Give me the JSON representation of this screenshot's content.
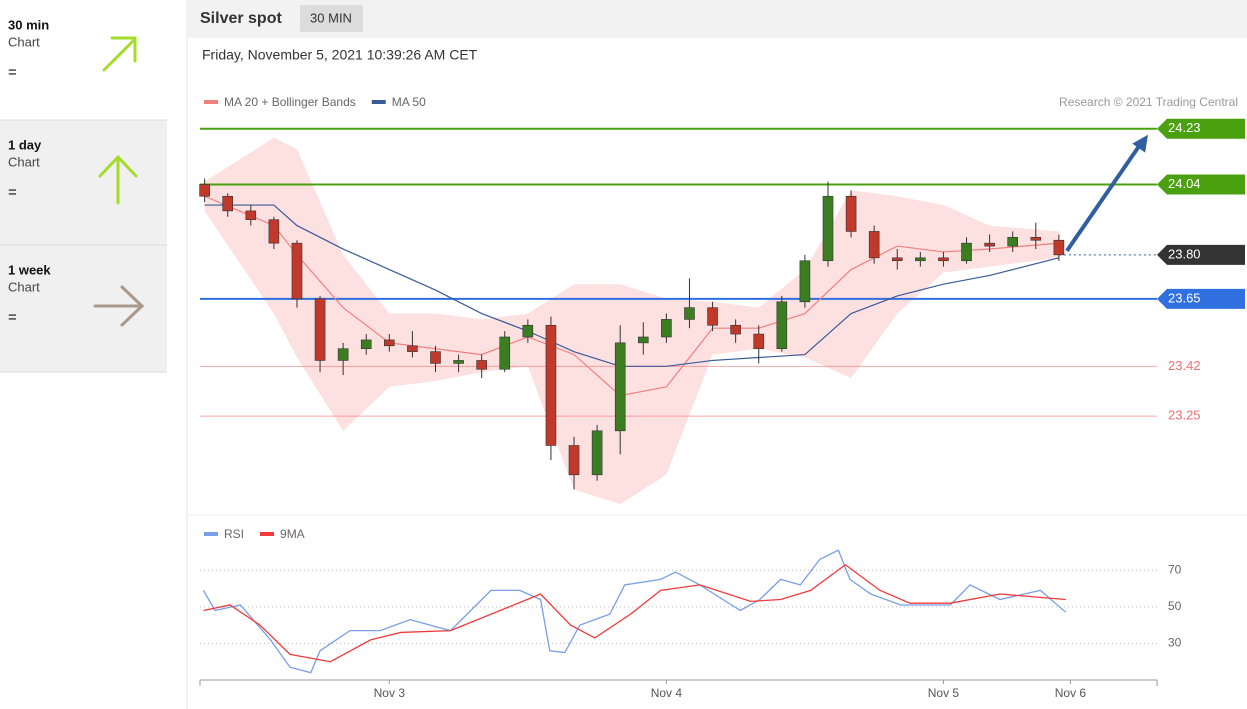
{
  "sidebar": [
    {
      "title": "30 min",
      "subtitle": "Chart",
      "status": "="
    },
    {
      "title": "1 day",
      "subtitle": "Chart",
      "status": "="
    },
    {
      "title": "1 week",
      "subtitle": "Chart",
      "status": "="
    }
  ],
  "header": {
    "title": "Silver spot",
    "interval": "30 MIN"
  },
  "timestamp": "Friday, November 5, 2021 10:39:26 AM CET",
  "chart_data": [
    {
      "type": "candlestick",
      "credit": "Research © 2021 Trading Central",
      "xlim": [
        -16.4,
        66.5
      ],
      "ylim": [
        22.93,
        24.26
      ],
      "candles": {
        "up_color": "#3d7d22",
        "down_color": "#c0392b",
        "x": [
          -16,
          -14,
          -12,
          -10,
          -8,
          -6,
          -4,
          -2,
          0,
          2,
          4,
          6,
          8,
          10,
          12,
          14,
          16,
          18,
          20,
          22,
          24,
          26,
          28,
          30,
          32,
          34,
          36,
          38,
          40,
          42,
          44,
          46,
          48,
          50,
          52,
          54,
          56,
          58
        ],
        "open": [
          24.04,
          24.0,
          23.95,
          23.92,
          23.84,
          23.65,
          23.44,
          23.48,
          23.51,
          23.49,
          23.47,
          23.43,
          23.44,
          23.41,
          23.52,
          23.56,
          23.15,
          23.05,
          23.2,
          23.5,
          23.52,
          23.58,
          23.62,
          23.56,
          23.53,
          23.48,
          23.64,
          23.78,
          24.0,
          23.88,
          23.79,
          23.78,
          23.79,
          23.78,
          23.84,
          23.83,
          23.86,
          23.85
        ],
        "high": [
          24.06,
          24.01,
          23.97,
          23.93,
          23.85,
          23.66,
          23.5,
          23.53,
          23.53,
          23.54,
          23.49,
          23.46,
          23.46,
          23.54,
          23.58,
          23.59,
          23.18,
          23.22,
          23.56,
          23.57,
          23.6,
          23.72,
          23.64,
          23.58,
          23.56,
          23.66,
          23.8,
          24.05,
          24.02,
          23.9,
          23.82,
          23.81,
          23.81,
          23.86,
          23.87,
          23.88,
          23.91,
          23.87
        ],
        "low": [
          23.98,
          23.93,
          23.9,
          23.82,
          23.62,
          23.4,
          23.39,
          23.46,
          23.47,
          23.45,
          23.4,
          23.4,
          23.38,
          23.4,
          23.5,
          23.1,
          23.0,
          23.03,
          23.12,
          23.46,
          23.5,
          23.55,
          23.54,
          23.5,
          23.43,
          23.47,
          23.62,
          23.76,
          23.86,
          23.77,
          23.75,
          23.76,
          23.76,
          23.77,
          23.81,
          23.81,
          23.82,
          23.78
        ],
        "close": [
          24.0,
          23.95,
          23.92,
          23.84,
          23.65,
          23.44,
          23.48,
          23.51,
          23.49,
          23.47,
          23.43,
          23.44,
          23.41,
          23.52,
          23.56,
          23.15,
          23.05,
          23.2,
          23.5,
          23.52,
          23.58,
          23.62,
          23.56,
          23.53,
          23.48,
          23.64,
          23.78,
          24.0,
          23.88,
          23.79,
          23.78,
          23.79,
          23.78,
          23.84,
          23.83,
          23.86,
          23.85,
          23.8
        ]
      },
      "x": [
        -16,
        -10,
        -8,
        -4,
        0,
        4,
        8,
        12,
        16,
        20,
        24,
        28,
        32,
        36,
        40,
        44,
        48,
        52,
        58
      ],
      "series": [
        {
          "name": "MA 20 + Bollinger Bands",
          "color": "#f08080",
          "band_color": "#fde0e0",
          "values": [
            24.0,
            23.9,
            23.8,
            23.62,
            23.5,
            23.48,
            23.46,
            23.52,
            23.46,
            23.32,
            23.35,
            23.55,
            23.55,
            23.6,
            23.75,
            23.83,
            23.81,
            23.82,
            23.84
          ],
          "band_upper": [
            24.05,
            24.2,
            24.16,
            23.8,
            23.6,
            23.6,
            23.58,
            23.6,
            23.7,
            23.7,
            23.65,
            23.64,
            23.62,
            23.75,
            24.02,
            24.0,
            23.97,
            23.9,
            23.88
          ],
          "band_lower": [
            23.95,
            23.6,
            23.45,
            23.2,
            23.35,
            23.37,
            23.4,
            23.42,
            23.0,
            22.95,
            23.05,
            23.46,
            23.48,
            23.45,
            23.38,
            23.6,
            23.74,
            23.76,
            23.79
          ]
        },
        {
          "name": "MA 50",
          "color": "#3a5a9a",
          "values": [
            23.97,
            23.97,
            23.9,
            23.82,
            23.75,
            23.68,
            23.6,
            23.54,
            23.47,
            23.42,
            23.42,
            23.44,
            23.45,
            23.46,
            23.6,
            23.66,
            23.7,
            23.73,
            23.79
          ]
        }
      ],
      "levels": [
        {
          "value": 24.23,
          "label": "24.23",
          "color": "#4aa00f",
          "style": "tag"
        },
        {
          "value": 24.04,
          "label": "24.04",
          "color": "#4aa00f",
          "style": "tag"
        },
        {
          "value": 23.8,
          "label": "23.80",
          "color": "#333333",
          "style": "tag-dotted"
        },
        {
          "value": 23.65,
          "label": "23.65",
          "color": "#2f6fe0",
          "style": "tag"
        },
        {
          "value": 23.42,
          "label": "23.42",
          "color": "#f07070",
          "style": "text"
        },
        {
          "value": 23.25,
          "label": "23.25",
          "color": "#f07070",
          "style": "text"
        }
      ],
      "arrow_color": "#2f5fa0"
    },
    {
      "type": "line",
      "xlim": [
        -16.4,
        66.5
      ],
      "ylim": [
        10,
        92
      ],
      "yticks": [
        30,
        50,
        70
      ],
      "xticks": [
        {
          "value": 0,
          "label": "Nov 3"
        },
        {
          "value": 24,
          "label": "Nov 4"
        },
        {
          "value": 48,
          "label": "Nov 5"
        },
        {
          "value": 59,
          "label": "Nov 6"
        }
      ],
      "series": [
        {
          "name": "RSI",
          "color": "#7a9ee8",
          "x": [
            -16.1,
            -15.1,
            -12.9,
            -10.3,
            -8.6,
            -6.8,
            -6.0,
            -3.4,
            -0.8,
            1.8,
            5.3,
            8.8,
            11.3,
            13.1,
            13.9,
            15.2,
            16.5,
            19.1,
            20.4,
            23.5,
            24.8,
            26.9,
            30.4,
            32.1,
            33.9,
            35.6,
            37.3,
            38.9,
            39.9,
            41.7,
            44.3,
            48.6,
            50.3,
            52.9,
            56.4,
            58.6
          ],
          "values": [
            59,
            48,
            51,
            32,
            17,
            14,
            26,
            37,
            37,
            43,
            37,
            59,
            59,
            54,
            26,
            25,
            40,
            46,
            62,
            65,
            69,
            62,
            48,
            54,
            65,
            62,
            76,
            81,
            65,
            57,
            51,
            51,
            62,
            54,
            59,
            47
          ]
        },
        {
          "name": "9MA",
          "color": "#f03a3a",
          "x": [
            -16.1,
            -13.8,
            -11.2,
            -8.6,
            -5.1,
            -1.6,
            1.0,
            5.3,
            9.6,
            13.1,
            15.7,
            17.8,
            20.9,
            23.5,
            26.9,
            31.3,
            33.9,
            36.5,
            39.5,
            42.5,
            45.1,
            48.6,
            52.9,
            58.6
          ],
          "values": [
            48,
            51,
            40,
            24,
            20,
            32,
            36,
            37,
            48,
            57,
            40,
            33,
            46,
            59,
            62,
            53,
            54,
            59,
            73,
            59,
            52,
            52,
            57,
            54
          ]
        }
      ]
    }
  ]
}
